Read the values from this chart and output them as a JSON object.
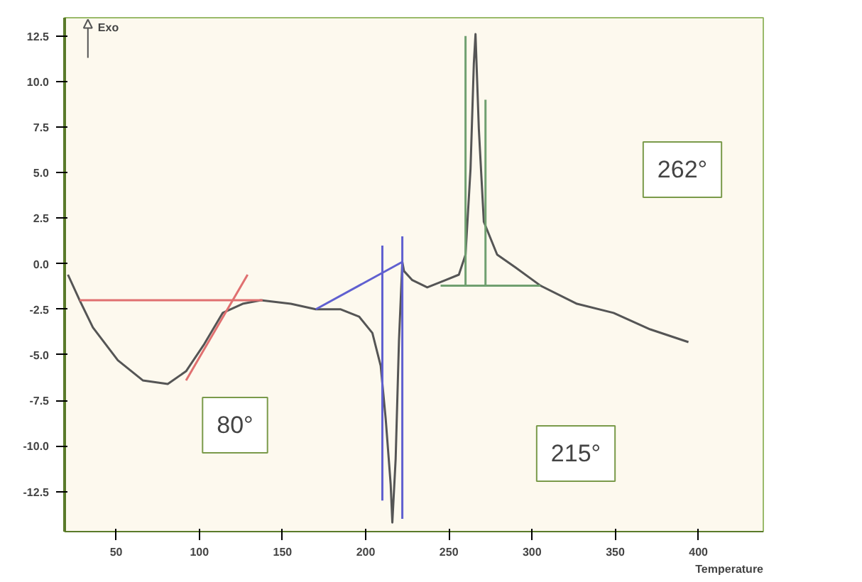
{
  "chart_data": {
    "type": "line",
    "xlabel": "Temperature",
    "ylabel": "Exo",
    "xlim": [
      19,
      439
    ],
    "ylim": [
      -14.7,
      13.5
    ],
    "xticks": [
      50,
      100,
      150,
      200,
      250,
      300,
      350,
      400
    ],
    "yticks": [
      {
        "value": 12.5,
        "label": "12.5"
      },
      {
        "value": 10,
        "label": "10.0"
      },
      {
        "value": 7.5,
        "label": "7.5"
      },
      {
        "value": 5,
        "label": "5.0"
      },
      {
        "value": 2.5,
        "label": "2.5"
      },
      {
        "value": 0,
        "label": "0.0"
      },
      {
        "value": -2.5,
        "label": "-2.5"
      },
      {
        "value": -5,
        "label": "-5.0"
      },
      {
        "value": -7.5,
        "label": "-7.5"
      },
      {
        "value": -10,
        "label": "-10.0"
      },
      {
        "value": -12.5,
        "label": "-12.5"
      }
    ],
    "grid": false,
    "marker": "none",
    "line_style": "solid",
    "series": [
      {
        "color": "#555555",
        "x": [
          21,
          28,
          36,
          51,
          66,
          81,
          92,
          103,
          114,
          126,
          137,
          155,
          170,
          185,
          196,
          204,
          209,
          212,
          215,
          216,
          218,
          220,
          222,
          223,
          228,
          237,
          248,
          256,
          260,
          263,
          265,
          266,
          268,
          271,
          279,
          290,
          305,
          327,
          349,
          371,
          394
        ],
        "values": [
          -0.6,
          -2.0,
          -3.5,
          -5.3,
          -6.4,
          -6.6,
          -5.9,
          -4.4,
          -2.7,
          -2.2,
          -2.0,
          -2.2,
          -2.5,
          -2.5,
          -2.9,
          -3.8,
          -5.6,
          -8.5,
          -12.1,
          -14.2,
          -10.7,
          -4.2,
          0.1,
          -0.4,
          -0.9,
          -1.3,
          -0.9,
          -0.6,
          0.5,
          5.2,
          11.0,
          12.6,
          7.4,
          2.3,
          0.5,
          -0.2,
          -1.2,
          -2.2,
          -2.7,
          -3.6,
          -4.3
        ]
      },
      {
        "color": "#e07070",
        "x": [
          28,
          138
        ],
        "values": [
          -2.0,
          -2.0
        ]
      },
      {
        "color": "#e07070",
        "x": [
          92,
          129
        ],
        "values": [
          -6.4,
          -0.6
        ]
      },
      {
        "color": "#6060d0",
        "x": [
          170,
          222
        ],
        "values": [
          -2.5,
          0.1
        ]
      },
      {
        "color": "#6060d0",
        "x": [
          210,
          210
        ],
        "values": [
          -13.0,
          1.0
        ]
      },
      {
        "color": "#6060d0",
        "x": [
          222,
          222
        ],
        "values": [
          -14.0,
          1.5
        ]
      },
      {
        "color": "#70a070",
        "x": [
          245,
          305
        ],
        "values": [
          -1.2,
          -1.2
        ]
      },
      {
        "color": "#70a070",
        "x": [
          260,
          260
        ],
        "values": [
          -1.2,
          12.5
        ]
      },
      {
        "color": "#70a070",
        "x": [
          272,
          272
        ],
        "values": [
          -1.2,
          9.0
        ]
      }
    ],
    "annotations": [
      "80°",
      "215°",
      "262°"
    ]
  }
}
